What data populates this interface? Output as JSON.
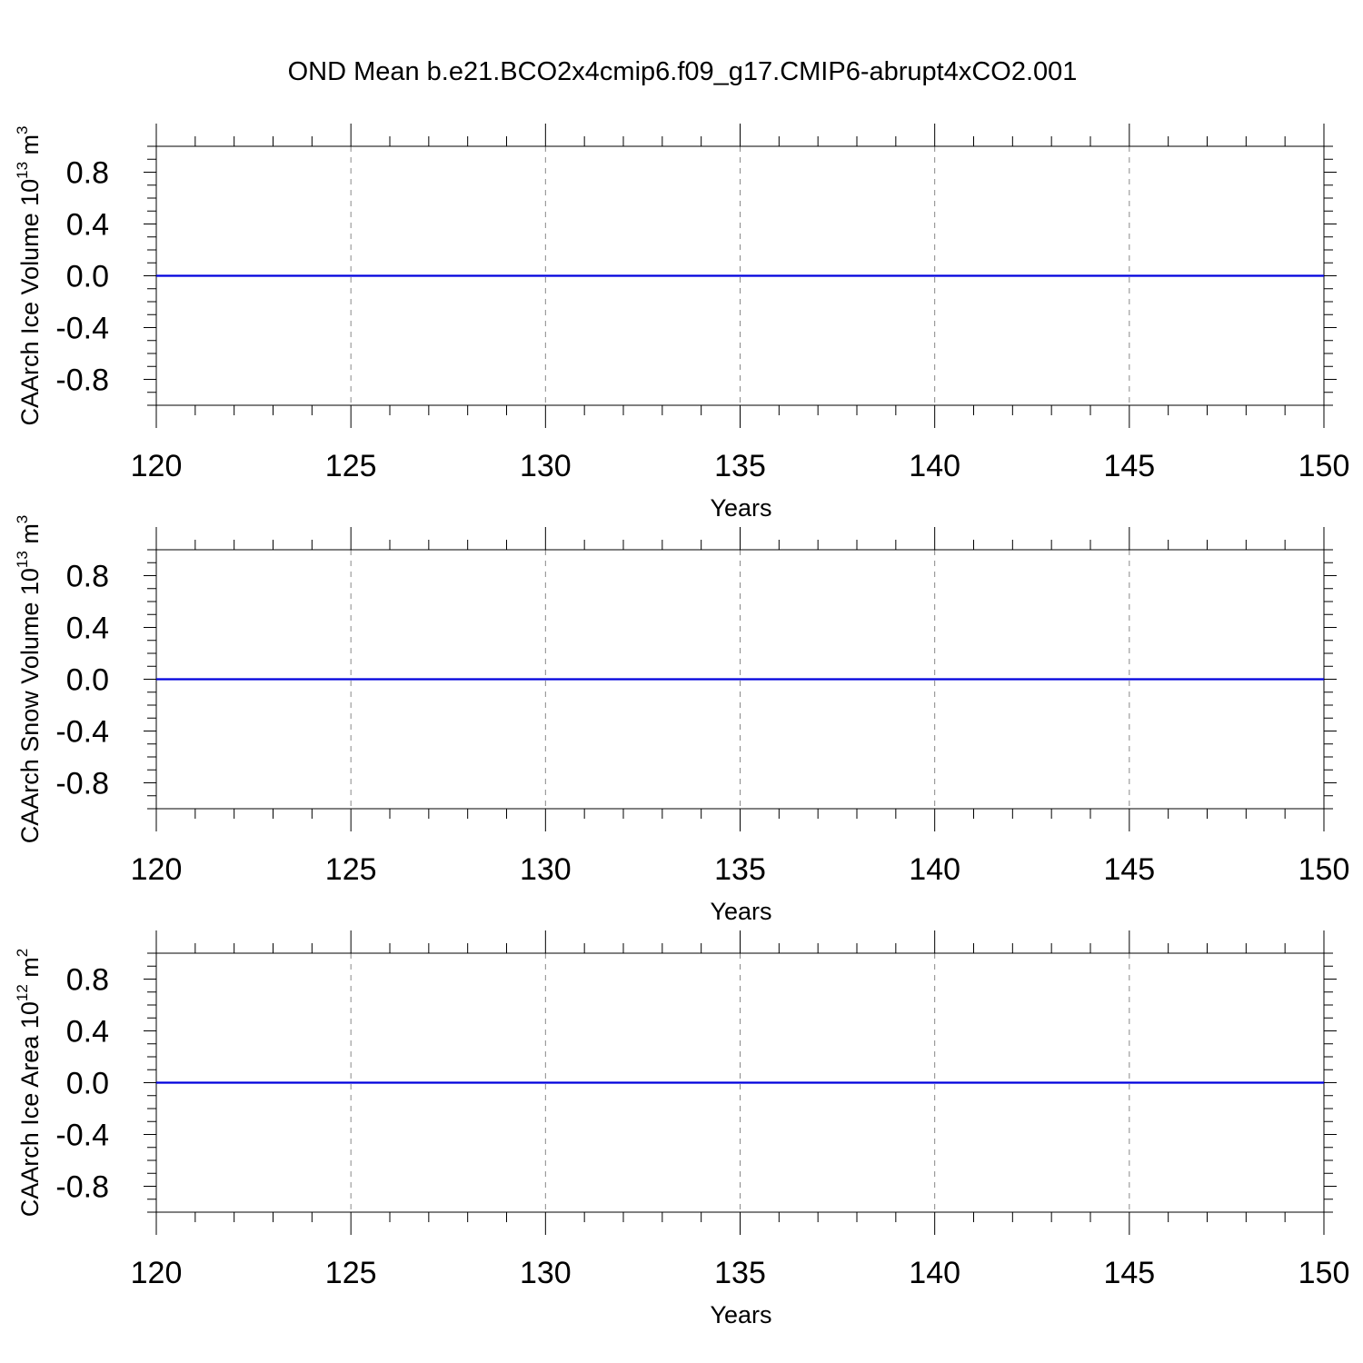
{
  "title": "OND Mean b.e21.BCO2x4cmip6.f09_g17.CMIP6-abrupt4xCO2.001",
  "chart_data": [
    {
      "type": "line",
      "ylabel": {
        "text": "CAArch Ice Volume 10",
        "exp": "13",
        "unit": " m",
        "unit_exp": "3"
      },
      "xlabel": "Years",
      "xlim": [
        120,
        150
      ],
      "ylim": [
        -1.0,
        1.0
      ],
      "x_ticks": [
        120,
        125,
        130,
        135,
        140,
        145,
        150
      ],
      "x_tick_labels": [
        "120",
        "125",
        "130",
        "135",
        "140",
        "145",
        "150"
      ],
      "y_ticks": [
        0.8,
        0.4,
        0.0,
        -0.4,
        -0.8
      ],
      "y_tick_labels": [
        "0.8",
        "0.4",
        "0.0",
        "-0.4",
        "-0.8"
      ],
      "grid": "vertical dashed at major x ticks",
      "series": [
        {
          "color": "#0000dd",
          "x": [
            120,
            150
          ],
          "y": [
            0.0,
            0.0
          ]
        }
      ]
    },
    {
      "type": "line",
      "ylabel": {
        "text": "CAArch Snow Volume 10",
        "exp": "13",
        "unit": " m",
        "unit_exp": "3"
      },
      "xlabel": "Years",
      "xlim": [
        120,
        150
      ],
      "ylim": [
        -1.0,
        1.0
      ],
      "x_ticks": [
        120,
        125,
        130,
        135,
        140,
        145,
        150
      ],
      "x_tick_labels": [
        "120",
        "125",
        "130",
        "135",
        "140",
        "145",
        "150"
      ],
      "y_ticks": [
        0.8,
        0.4,
        0.0,
        -0.4,
        -0.8
      ],
      "y_tick_labels": [
        "0.8",
        "0.4",
        "0.0",
        "-0.4",
        "-0.8"
      ],
      "grid": "vertical dashed at major x ticks",
      "series": [
        {
          "color": "#0000dd",
          "x": [
            120,
            150
          ],
          "y": [
            0.0,
            0.0
          ]
        }
      ]
    },
    {
      "type": "line",
      "ylabel": {
        "text": "CAArch Ice Area 10",
        "exp": "12",
        "unit": " m",
        "unit_exp": "2"
      },
      "xlabel": "Years",
      "xlim": [
        120,
        150
      ],
      "ylim": [
        -1.0,
        1.0
      ],
      "x_ticks": [
        120,
        125,
        130,
        135,
        140,
        145,
        150
      ],
      "x_tick_labels": [
        "120",
        "125",
        "130",
        "135",
        "140",
        "145",
        "150"
      ],
      "y_ticks": [
        0.8,
        0.4,
        0.0,
        -0.4,
        -0.8
      ],
      "y_tick_labels": [
        "0.8",
        "0.4",
        "0.0",
        "-0.4",
        "-0.8"
      ],
      "grid": "vertical dashed at major x ticks",
      "series": [
        {
          "color": "#0000dd",
          "x": [
            120,
            150
          ],
          "y": [
            0.0,
            0.0
          ]
        }
      ]
    }
  ]
}
